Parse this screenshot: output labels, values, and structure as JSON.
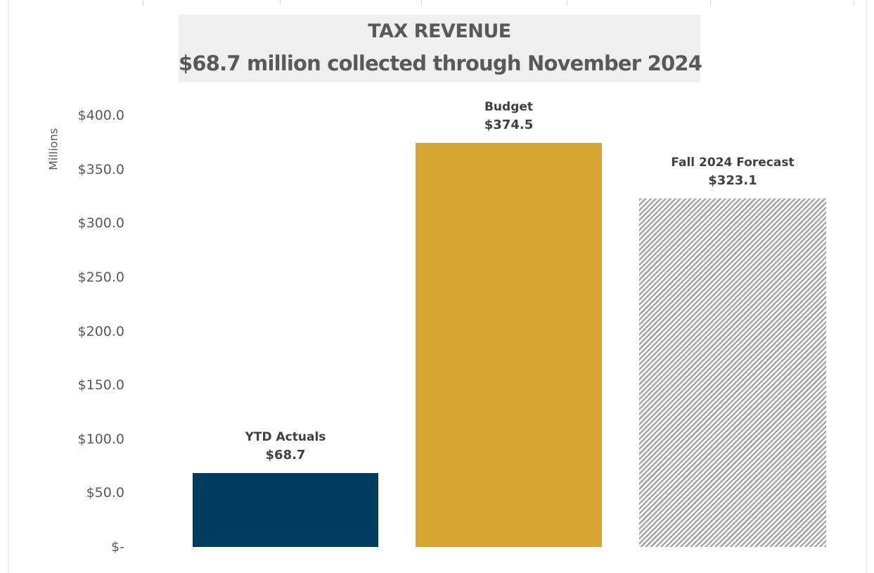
{
  "chart_data": {
    "type": "bar",
    "title": "TAX REVENUE",
    "subtitle": "$68.7 million collected through November 2024",
    "ylabel": "Millions",
    "xlabel": "",
    "ylim": [
      0,
      400
    ],
    "y_ticks": [
      {
        "value": 0,
        "label": "$-"
      },
      {
        "value": 50,
        "label": "$50.0"
      },
      {
        "value": 100,
        "label": "$100.0"
      },
      {
        "value": 150,
        "label": "$150.0"
      },
      {
        "value": 200,
        "label": "$200.0"
      },
      {
        "value": 250,
        "label": "$250.0"
      },
      {
        "value": 300,
        "label": "$300.0"
      },
      {
        "value": 350,
        "label": "$350.0"
      },
      {
        "value": 400,
        "label": "$400.0"
      }
    ],
    "grid": false,
    "categories": [
      "YTD Actuals",
      "Budget",
      "Fall 2024 Forecast"
    ],
    "values": [
      68.7,
      374.5,
      323.1
    ],
    "value_labels": [
      "$68.7",
      "$374.5",
      "$323.1"
    ],
    "colors": [
      "#003a5c",
      "#d8a532",
      "#a6a6a6"
    ],
    "fills": [
      "solid",
      "solid",
      "diagonal-hatch"
    ]
  }
}
